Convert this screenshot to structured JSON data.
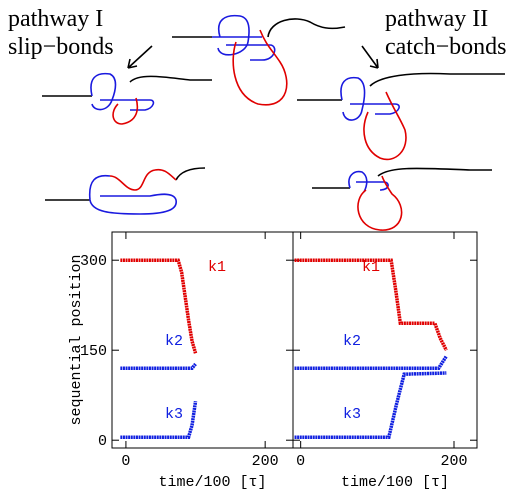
{
  "labels": {
    "left": [
      "pathway I",
      "slip−bonds"
    ],
    "right": [
      "pathway II",
      "catch−bonds"
    ]
  },
  "chart_data": [
    {
      "type": "line",
      "ylabel": "sequential position",
      "xlabel": "time/100 [τ]",
      "xlim": [
        -20,
        240
      ],
      "ylim": [
        -13,
        347
      ],
      "xticks": [
        0,
        200
      ],
      "yticks": [
        0,
        150,
        300
      ],
      "ytick_labels": true,
      "series": [
        {
          "name": "k1",
          "color": "#e00000",
          "x": [
            -8,
            75,
            80,
            85,
            90,
            95,
            100
          ],
          "values": [
            300,
            300,
            280,
            240,
            200,
            165,
            145
          ]
        },
        {
          "name": "k2",
          "color": "#1020e0",
          "x": [
            -8,
            95,
            100
          ],
          "values": [
            120,
            120,
            127
          ]
        },
        {
          "name": "k3",
          "color": "#1020e0",
          "x": [
            -8,
            90,
            95,
            100
          ],
          "values": [
            5,
            5,
            25,
            65
          ]
        }
      ]
    },
    {
      "type": "line",
      "xlabel": "time/100 [τ]",
      "xlim": [
        -10,
        230
      ],
      "ylim": [
        -13,
        347
      ],
      "xticks": [
        0,
        200
      ],
      "yticks": [
        0,
        150,
        300
      ],
      "ytick_labels": false,
      "series": [
        {
          "name": "k1",
          "color": "#e00000",
          "x": [
            -8,
            118,
            124,
            130,
            175,
            182,
            190
          ],
          "values": [
            300,
            300,
            250,
            195,
            195,
            170,
            150
          ]
        },
        {
          "name": "k2",
          "color": "#1020e0",
          "x": [
            -8,
            180,
            190
          ],
          "values": [
            120,
            120,
            140
          ]
        },
        {
          "name": "k3",
          "color": "#1020e0",
          "x": [
            -8,
            115,
            125,
            135,
            190
          ],
          "values": [
            5,
            5,
            60,
            110,
            112
          ]
        }
      ]
    }
  ]
}
